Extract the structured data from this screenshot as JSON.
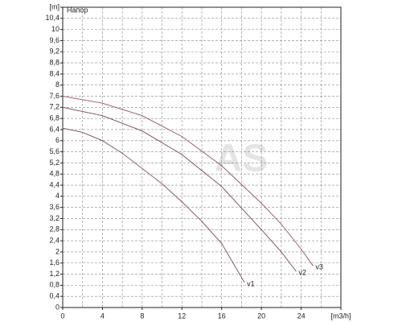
{
  "chart_data": {
    "type": "line",
    "title": "Напор",
    "watermark": "AS",
    "xlim": [
      0,
      28
    ],
    "xticks": [
      0,
      4,
      8,
      12,
      16,
      20,
      24,
      {
        "value": 28,
        "label": "[m3/h]"
      }
    ],
    "minor_xticks": [
      2,
      6,
      10,
      14,
      18,
      22,
      26
    ],
    "ylim": [
      0,
      10.8
    ],
    "yticks": [
      0,
      {
        "value": 0.4,
        "label": "0,4"
      },
      {
        "value": 0.8,
        "label": "0,8"
      },
      {
        "value": 1.2,
        "label": "1,2"
      },
      {
        "value": 1.6,
        "label": "1,6"
      },
      2,
      {
        "value": 2.4,
        "label": "2,4"
      },
      {
        "value": 2.8,
        "label": "2,8"
      },
      {
        "value": 3.2,
        "label": "3,2"
      },
      {
        "value": 3.6,
        "label": "3,6"
      },
      4,
      {
        "value": 4.4,
        "label": "4,4"
      },
      {
        "value": 4.8,
        "label": "4,8"
      },
      {
        "value": 5.2,
        "label": "5,2"
      },
      {
        "value": 5.6,
        "label": "5,6"
      },
      6,
      {
        "value": 6.4,
        "label": "6,4"
      },
      {
        "value": 6.8,
        "label": "6,8"
      },
      {
        "value": 7.2,
        "label": "7,2"
      },
      {
        "value": 7.6,
        "label": "7,6"
      },
      8,
      {
        "value": 8.4,
        "label": "8,4"
      },
      {
        "value": 8.8,
        "label": "8,8"
      },
      {
        "value": 9.2,
        "label": "9,2"
      },
      {
        "value": 9.6,
        "label": "9,6"
      },
      10,
      {
        "value": 10.4,
        "label": "10,4"
      },
      {
        "value": 10.8,
        "label": "[m]"
      }
    ],
    "grid": true,
    "series": [
      {
        "name": "v1",
        "color": "#7a4a55",
        "x": [
          0,
          2,
          4,
          6,
          8,
          10,
          12,
          14,
          16,
          18.3
        ],
        "values": [
          6.45,
          6.3,
          6.0,
          5.55,
          5.0,
          4.45,
          3.8,
          3.1,
          2.3,
          0.9
        ]
      },
      {
        "name": "v2",
        "color": "#7a4a55",
        "x": [
          0,
          4,
          8,
          12,
          16,
          20,
          22,
          23.5
        ],
        "values": [
          7.2,
          6.9,
          6.35,
          5.5,
          4.35,
          2.8,
          2.0,
          1.3
        ]
      },
      {
        "name": "v3",
        "color": "#9a4f60",
        "x": [
          0,
          4,
          8,
          12,
          16,
          20,
          22,
          24,
          25.2
        ],
        "values": [
          7.6,
          7.35,
          6.9,
          6.15,
          5.1,
          3.75,
          3.0,
          2.1,
          1.5
        ]
      }
    ]
  }
}
